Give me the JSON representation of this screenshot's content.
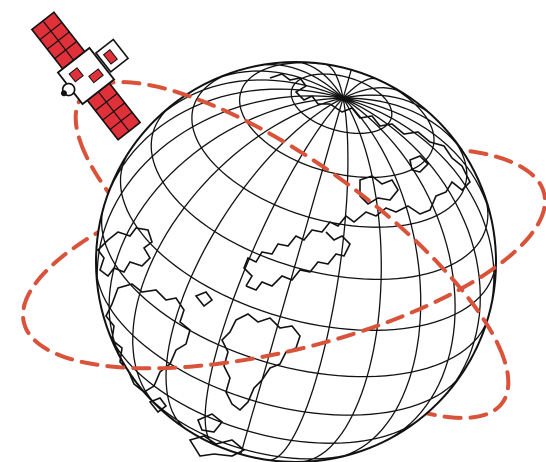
{
  "illustration": {
    "subject": "satellite-orbiting-globe",
    "colors": {
      "background": "#ffffff",
      "globe_line": "#111111",
      "orbit": "#d9533a",
      "satellite_red": "#e0313a",
      "satellite_body": "#ffffff",
      "satellite_outline": "#111111"
    },
    "icons": [
      "globe-icon",
      "satellite-icon",
      "orbit-path"
    ],
    "orbits": [
      {
        "name": "orbit-tilted-left",
        "style": "dashed"
      },
      {
        "name": "orbit-tilted-right",
        "style": "dashed"
      }
    ]
  }
}
